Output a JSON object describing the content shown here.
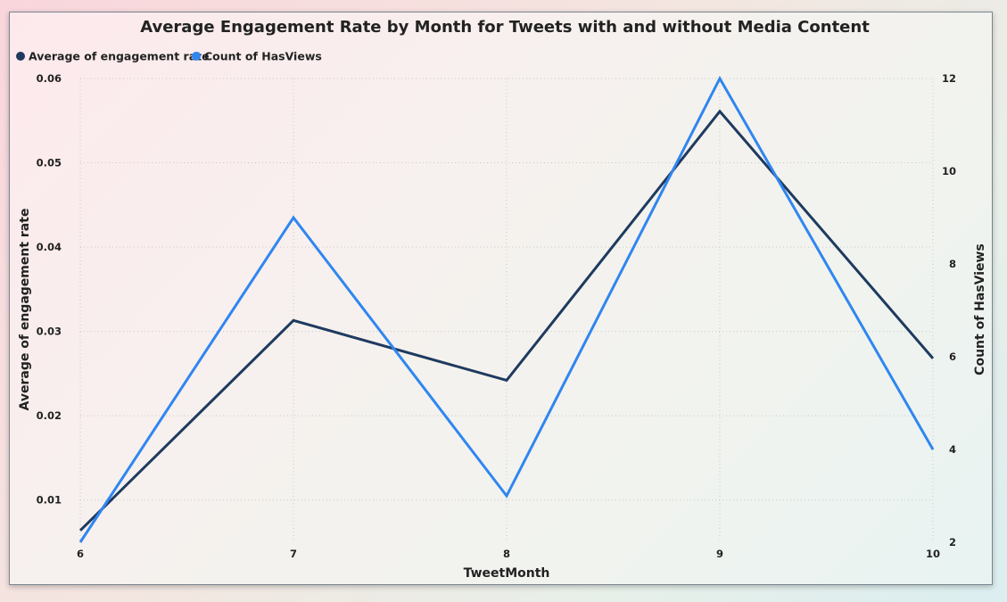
{
  "colors": {
    "series_dark": "#1e3a5f",
    "series_light": "#2f86f0"
  },
  "chart_data": {
    "type": "line",
    "title": "Average Engagement Rate by Month for Tweets with and without Media Content",
    "xlabel": "TweetMonth",
    "ylabel": "Average of engagement rate",
    "y2label": "Count of HasViews",
    "x": [
      6,
      7,
      8,
      9,
      10
    ],
    "x_ticks": [
      "6",
      "7",
      "8",
      "9",
      "10"
    ],
    "y_ticks": [
      "0.01",
      "0.02",
      "0.03",
      "0.04",
      "0.05",
      "0.06"
    ],
    "y2_ticks": [
      "2",
      "4",
      "6",
      "8",
      "10",
      "12"
    ],
    "ylim": [
      0.005,
      0.06
    ],
    "y2lim": [
      2,
      12
    ],
    "legend_position": "top-left",
    "grid": true,
    "series": [
      {
        "name": "Average of engagement rate",
        "axis": "left",
        "color": "#1e3a5f",
        "values": [
          0.0064,
          0.0313,
          0.0242,
          0.0561,
          0.0268
        ]
      },
      {
        "name": "Count of HasViews",
        "axis": "right",
        "color": "#2f86f0",
        "values": [
          2,
          9,
          3,
          12,
          4
        ]
      }
    ]
  }
}
